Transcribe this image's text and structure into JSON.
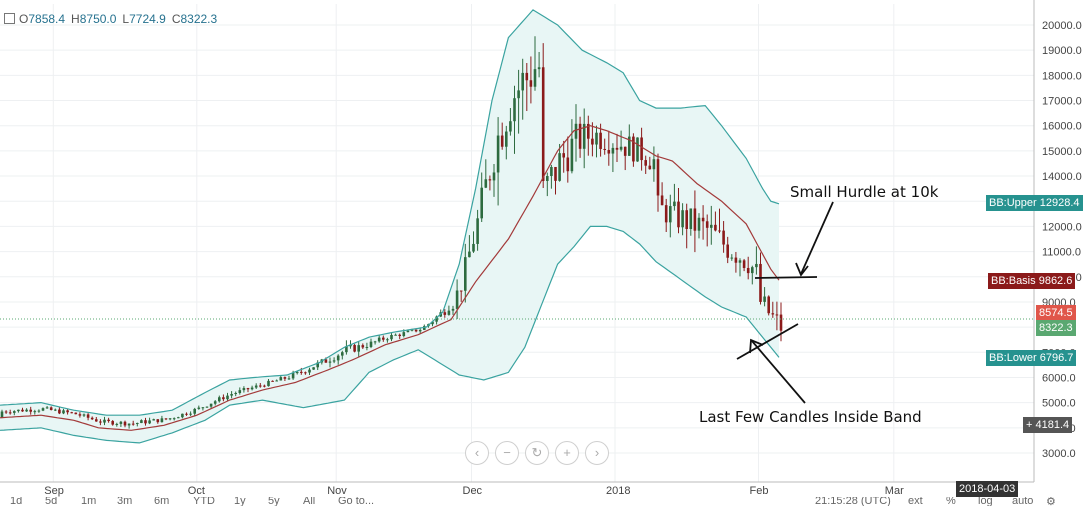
{
  "ohlc": {
    "o_label": "O",
    "o": "7858.4",
    "h_label": "H",
    "h": "8750.0",
    "l_label": "L",
    "l": "7724.9",
    "c_label": "C",
    "c": "8322.3"
  },
  "price_tags": {
    "bb_upper_label": "BB:Upper",
    "bb_upper": "12928.4",
    "bb_basis_label": "BB:Basis",
    "bb_basis": "9862.6",
    "last_high": "8574.5",
    "last_close": "8322.3",
    "bb_lower_label": "BB:Lower",
    "bb_lower": "6796.7",
    "crosshair_label": "+",
    "crosshair_value": "4181.4"
  },
  "annotations": {
    "hurdle": "Small Hurdle at 10k",
    "candles": "Last Few Candles Inside Band"
  },
  "date_highlight": "2018-04-03",
  "toolbar": {
    "items": [
      "1d",
      "5d",
      "1m",
      "3m",
      "6m",
      "YTD",
      "1y",
      "5y",
      "All",
      "Go to...",
      "21:15:28 (UTC)",
      "ext",
      "%",
      "log",
      "auto"
    ]
  },
  "colors": {
    "up": "#2d6b3f",
    "down": "#8b1a1a",
    "band": "#3aa3a0",
    "basis": "#a33a3a",
    "fill": "#e8f6f5"
  },
  "chart_data": {
    "type": "candlestick",
    "title": "",
    "xlabel": "",
    "ylabel": "",
    "ylim": [
      2400,
      20800
    ],
    "y_ticks": [
      3000,
      4000,
      5000,
      6000,
      7000,
      8000,
      9000,
      10000,
      11000,
      12000,
      13000,
      14000,
      15000,
      16000,
      17000,
      18000,
      19000,
      20000
    ],
    "y_tick_labels": [
      "3000.0",
      "4000.0",
      "5000.0",
      "6000.0",
      "7000.0",
      "8000.0",
      "9000.0",
      "10000.0",
      "11000.0",
      "12000.0",
      "13000.0",
      "14000.0",
      "15000.0",
      "16000.0",
      "17000.0",
      "18000.0",
      "19000.0",
      "20000.0"
    ],
    "x_ticks": [
      "Sep",
      "Oct",
      "Nov",
      "Dec",
      "2018",
      "Feb",
      "Mar"
    ],
    "x_tick_index": [
      13,
      48,
      82,
      115,
      150,
      185,
      218
    ],
    "bb_upper": [
      [
        0,
        4900
      ],
      [
        10,
        5000
      ],
      [
        18,
        4700
      ],
      [
        26,
        4500
      ],
      [
        34,
        4500
      ],
      [
        42,
        4700
      ],
      [
        50,
        5400
      ],
      [
        56,
        5900
      ],
      [
        62,
        6000
      ],
      [
        70,
        6100
      ],
      [
        78,
        6600
      ],
      [
        84,
        7200
      ],
      [
        90,
        7600
      ],
      [
        96,
        7800
      ],
      [
        104,
        8000
      ],
      [
        108,
        8600
      ],
      [
        112,
        10500
      ],
      [
        116,
        13500
      ],
      [
        120,
        17000
      ],
      [
        124,
        19500
      ],
      [
        130,
        20600
      ],
      [
        136,
        20000
      ],
      [
        142,
        19000
      ],
      [
        148,
        18500
      ],
      [
        152,
        18100
      ],
      [
        156,
        17000
      ],
      [
        160,
        16700
      ],
      [
        166,
        16700
      ],
      [
        172,
        16800
      ],
      [
        176,
        16000
      ],
      [
        182,
        14700
      ],
      [
        186,
        13500
      ],
      [
        188,
        13000
      ],
      [
        190,
        12900
      ]
    ],
    "bb_basis": [
      [
        0,
        4400
      ],
      [
        10,
        4500
      ],
      [
        18,
        4300
      ],
      [
        24,
        4000
      ],
      [
        32,
        3900
      ],
      [
        40,
        4100
      ],
      [
        48,
        4500
      ],
      [
        56,
        5100
      ],
      [
        64,
        5500
      ],
      [
        72,
        5800
      ],
      [
        80,
        6300
      ],
      [
        86,
        6700
      ],
      [
        94,
        7300
      ],
      [
        102,
        7700
      ],
      [
        110,
        8300
      ],
      [
        116,
        9800
      ],
      [
        124,
        11500
      ],
      [
        130,
        13200
      ],
      [
        136,
        15000
      ],
      [
        140,
        15800
      ],
      [
        144,
        16000
      ],
      [
        148,
        15800
      ],
      [
        154,
        15400
      ],
      [
        160,
        14800
      ],
      [
        164,
        14600
      ],
      [
        170,
        13700
      ],
      [
        176,
        13000
      ],
      [
        182,
        12100
      ],
      [
        188,
        10300
      ],
      [
        190,
        9862.6
      ]
    ],
    "bb_lower": [
      [
        0,
        3900
      ],
      [
        10,
        4000
      ],
      [
        18,
        3700
      ],
      [
        26,
        3500
      ],
      [
        34,
        3400
      ],
      [
        42,
        3800
      ],
      [
        50,
        4300
      ],
      [
        56,
        4900
      ],
      [
        64,
        5100
      ],
      [
        74,
        4800
      ],
      [
        84,
        5100
      ],
      [
        90,
        6200
      ],
      [
        96,
        6700
      ],
      [
        102,
        7100
      ],
      [
        108,
        6500
      ],
      [
        112,
        6100
      ],
      [
        118,
        5900
      ],
      [
        124,
        6200
      ],
      [
        128,
        7200
      ],
      [
        136,
        10500
      ],
      [
        140,
        11200
      ],
      [
        144,
        12000
      ],
      [
        148,
        12000
      ],
      [
        152,
        11800
      ],
      [
        156,
        11300
      ],
      [
        160,
        10600
      ],
      [
        166,
        9900
      ],
      [
        172,
        9200
      ],
      [
        176,
        8800
      ],
      [
        182,
        8400
      ],
      [
        188,
        7200
      ],
      [
        190,
        6796.7
      ]
    ],
    "last_candles": [
      {
        "o": 7858.4,
        "h": 8750.0,
        "l": 7724.9,
        "c": 8322.3
      }
    ],
    "current_price": 8322.3
  }
}
